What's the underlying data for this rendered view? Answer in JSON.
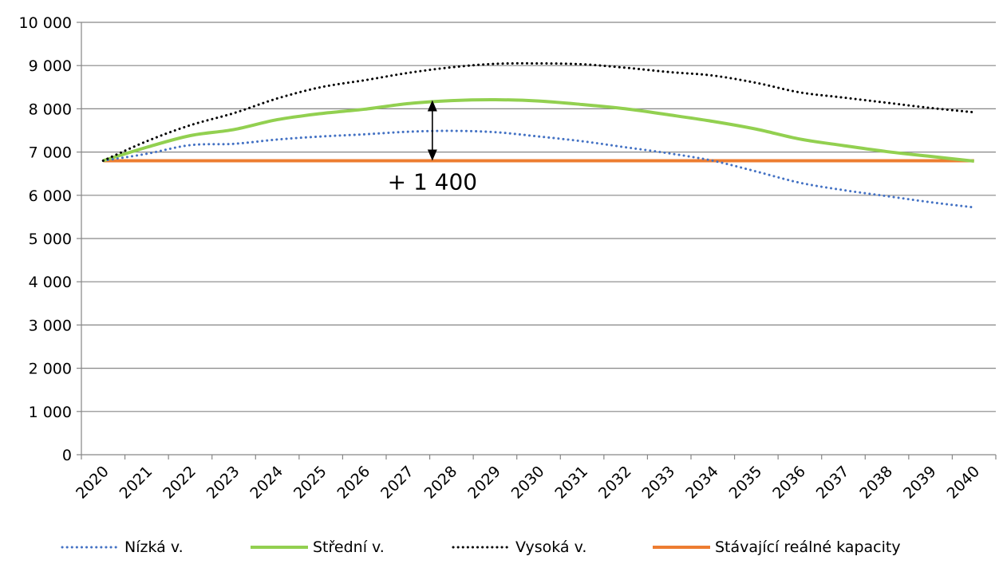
{
  "chart_data": {
    "type": "line",
    "categories": [
      "2020",
      "2021",
      "2022",
      "2023",
      "2024",
      "2025",
      "2026",
      "2027",
      "2028",
      "2029",
      "2030",
      "2031",
      "2032",
      "2033",
      "2034",
      "2035",
      "2036",
      "2037",
      "2038",
      "2039",
      "2040"
    ],
    "ylim": [
      0,
      10000
    ],
    "yticks": [
      0,
      1000,
      2000,
      3000,
      4000,
      5000,
      6000,
      7000,
      8000,
      9000,
      10000
    ],
    "ytick_labels": [
      "0",
      "1 000",
      "2 000",
      "3 000",
      "4 000",
      "5 000",
      "6 000",
      "7 000",
      "8 000",
      "9 000",
      "10 000"
    ],
    "grid": true,
    "legend_position": "bottom",
    "series": [
      {
        "name": "Nízká v.",
        "color": "#4472C4",
        "style": "dotted",
        "values": [
          6800,
          6960,
          7160,
          7190,
          7290,
          7360,
          7410,
          7470,
          7490,
          7460,
          7360,
          7250,
          7110,
          6970,
          6800,
          6550,
          6290,
          6120,
          5980,
          5840,
          5720
        ]
      },
      {
        "name": "Střední v.",
        "color": "#92D050",
        "style": "solid",
        "values": [
          6800,
          7110,
          7380,
          7520,
          7750,
          7890,
          7990,
          8120,
          8190,
          8210,
          8180,
          8100,
          8000,
          7860,
          7710,
          7530,
          7300,
          7150,
          7010,
          6900,
          6790
        ]
      },
      {
        "name": "Vysoká v.",
        "color": "#000000",
        "style": "dotted",
        "values": [
          6800,
          7250,
          7620,
          7900,
          8240,
          8500,
          8660,
          8830,
          8960,
          9040,
          9050,
          9030,
          8950,
          8850,
          8770,
          8600,
          8380,
          8260,
          8140,
          8020,
          7920
        ]
      },
      {
        "name": "Stávající reálné kapacity",
        "color": "#ED7D31",
        "style": "solid",
        "values": [
          6800,
          6800,
          6800,
          6800,
          6800,
          6800,
          6800,
          6800,
          6800,
          6800,
          6800,
          6800,
          6800,
          6800,
          6800,
          6800,
          6800,
          6800,
          6800,
          6800,
          6800
        ]
      }
    ],
    "annotations": [
      {
        "text": "+ 1 400",
        "x": "2028",
        "y_from": 6800,
        "y_to": 8200
      }
    ]
  }
}
